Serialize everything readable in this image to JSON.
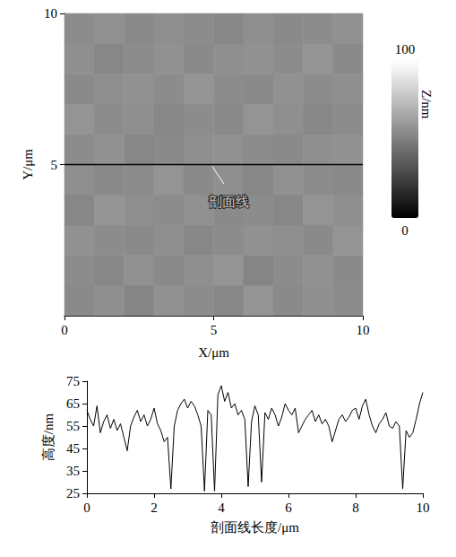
{
  "chart_data": [
    {
      "type": "heatmap",
      "xlabel": "X/μm",
      "ylabel": "Y/μm",
      "xlim": [
        0,
        10
      ],
      "ylim": [
        0,
        10
      ],
      "xticks": [
        0,
        5,
        10
      ],
      "yticks": [
        5,
        10
      ],
      "cells": [
        [
          54,
          56,
          52,
          57,
          55,
          53,
          58,
          54,
          56,
          55
        ],
        [
          55,
          53,
          57,
          54,
          56,
          58,
          52,
          55,
          57,
          54
        ],
        [
          57,
          55,
          54,
          56,
          53,
          55,
          57,
          56,
          54,
          58
        ],
        [
          53,
          58,
          56,
          55,
          57,
          54,
          55,
          53,
          58,
          56
        ],
        [
          56,
          54,
          55,
          58,
          54,
          56,
          53,
          57,
          55,
          54
        ],
        [
          55,
          57,
          53,
          54,
          56,
          57,
          55,
          54,
          56,
          57
        ],
        [
          58,
          55,
          56,
          53,
          55,
          54,
          58,
          56,
          53,
          55
        ],
        [
          54,
          56,
          57,
          55,
          58,
          55,
          54,
          57,
          55,
          56
        ],
        [
          56,
          53,
          55,
          57,
          54,
          56,
          57,
          55,
          58,
          54
        ],
        [
          55,
          57,
          54,
          56,
          55,
          53,
          56,
          54,
          55,
          57
        ]
      ],
      "colorbar": {
        "range": [
          0,
          100
        ],
        "ticks": [
          0,
          100
        ],
        "label": "Z/nm",
        "colors": [
          "#000000",
          "#ffffff"
        ]
      },
      "annotation": "剖面线",
      "profile_line_y": 5
    },
    {
      "type": "line",
      "xlabel": "剖面线长度/μm",
      "ylabel": "高度/nm",
      "xlim": [
        0,
        10
      ],
      "ylim": [
        25,
        75
      ],
      "xticks": [
        0,
        2,
        4,
        6,
        8,
        10
      ],
      "yticks": [
        25,
        35,
        45,
        55,
        65,
        75
      ],
      "color": "#000000",
      "x": [
        0,
        0.1,
        0.2,
        0.3,
        0.4,
        0.5,
        0.6,
        0.7,
        0.8,
        0.9,
        1.0,
        1.1,
        1.2,
        1.3,
        1.4,
        1.5,
        1.6,
        1.7,
        1.8,
        1.9,
        2.0,
        2.1,
        2.2,
        2.3,
        2.4,
        2.5,
        2.6,
        2.7,
        2.8,
        2.9,
        3.0,
        3.1,
        3.2,
        3.3,
        3.4,
        3.5,
        3.6,
        3.7,
        3.8,
        3.9,
        4.0,
        4.1,
        4.2,
        4.3,
        4.4,
        4.5,
        4.6,
        4.7,
        4.8,
        4.9,
        5.0,
        5.1,
        5.2,
        5.3,
        5.4,
        5.5,
        5.6,
        5.7,
        5.8,
        5.9,
        6.0,
        6.1,
        6.2,
        6.3,
        6.4,
        6.5,
        6.6,
        6.7,
        6.8,
        6.9,
        7.0,
        7.1,
        7.2,
        7.3,
        7.4,
        7.5,
        7.6,
        7.7,
        7.8,
        7.9,
        8.0,
        8.1,
        8.2,
        8.3,
        8.4,
        8.5,
        8.6,
        8.7,
        8.8,
        8.9,
        9.0,
        9.1,
        9.2,
        9.3,
        9.4,
        9.5,
        9.6,
        9.7,
        9.8,
        9.9,
        10.0
      ],
      "values": [
        62,
        58,
        55,
        64,
        52,
        57,
        60,
        54,
        58,
        53,
        56,
        50,
        44,
        55,
        59,
        62,
        57,
        60,
        55,
        58,
        63,
        56,
        53,
        48,
        50,
        27,
        55,
        62,
        65,
        67,
        63,
        66,
        64,
        60,
        55,
        26,
        62,
        60,
        26,
        69,
        73,
        66,
        70,
        63,
        65,
        60,
        62,
        58,
        28,
        57,
        64,
        60,
        30,
        61,
        58,
        63,
        60,
        55,
        59,
        65,
        62,
        60,
        63,
        52,
        55,
        58,
        60,
        62,
        57,
        60,
        56,
        58,
        55,
        48,
        53,
        58,
        60,
        57,
        59,
        62,
        63,
        58,
        64,
        67,
        60,
        55,
        52,
        56,
        58,
        61,
        55,
        54,
        57,
        55,
        27,
        53,
        50,
        52,
        58,
        65,
        70
      ]
    }
  ]
}
